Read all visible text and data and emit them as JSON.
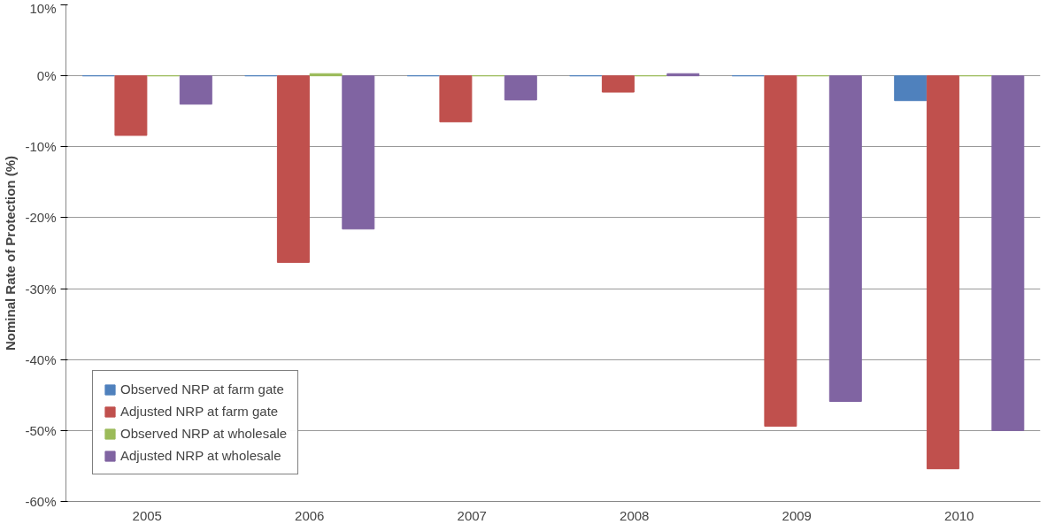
{
  "chart_data": {
    "type": "bar",
    "ylabel": "Nominal Rate of Protection (%)",
    "categories": [
      "2005",
      "2006",
      "2007",
      "2008",
      "2009",
      "2010"
    ],
    "series": [
      {
        "name": "Observed NRP at farm gate",
        "color": "#4f81bd",
        "values": [
          0,
          0,
          0,
          0,
          0,
          -3.5
        ]
      },
      {
        "name": "Adjusted NRP at farm gate",
        "color": "#c0504d",
        "values": [
          -8.4,
          -26.3,
          -6.5,
          -2.3,
          -49.4,
          -55.4
        ]
      },
      {
        "name": "Observed NRP at wholesale",
        "color": "#9bbb59",
        "values": [
          0,
          0.3,
          0,
          0,
          0,
          0
        ]
      },
      {
        "name": "Adjusted NRP at wholesale",
        "color": "#8064a2",
        "values": [
          -4.0,
          -21.6,
          -3.4,
          0.3,
          -45.9,
          -50.0
        ]
      }
    ],
    "ylim": [
      -60,
      10
    ],
    "yticks": [
      {
        "value": -60,
        "label": "-60%"
      },
      {
        "value": -50,
        "label": "-50%"
      },
      {
        "value": -40,
        "label": "-40%"
      },
      {
        "value": -30,
        "label": "-30%"
      },
      {
        "value": -20,
        "label": "-20%"
      },
      {
        "value": -10,
        "label": "-10%"
      },
      {
        "value": 0,
        "label": "0%"
      },
      {
        "value": 10,
        "label": "10%"
      }
    ],
    "grid": "y",
    "legend": "bottom left"
  }
}
